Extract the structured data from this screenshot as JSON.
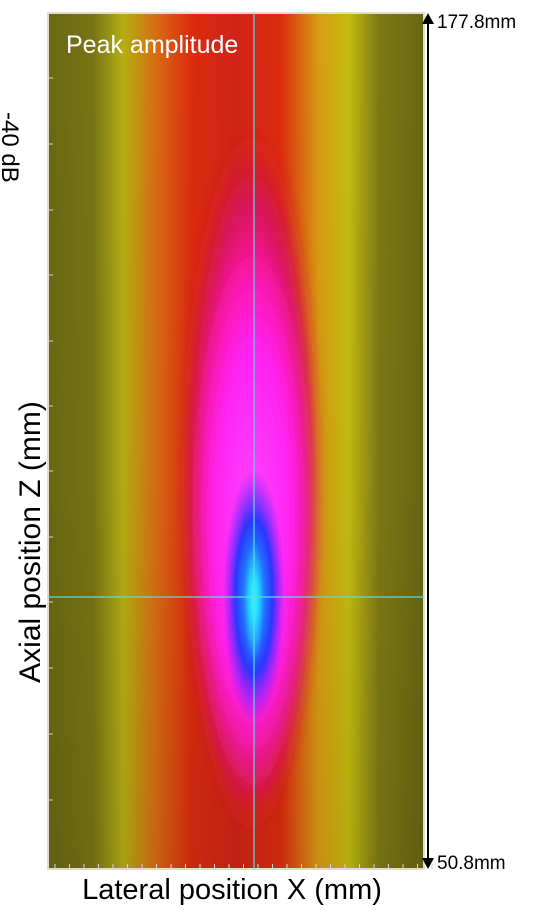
{
  "chart_data": {
    "type": "heatmap",
    "title": "Peak amplitude",
    "xlabel": "Lateral position X (mm)",
    "ylabel": "Axial position Z (mm)",
    "top_left_label": "-40 dB",
    "scale_markers": {
      "top_label": "177.8mm",
      "bottom_label": "50.8mm"
    },
    "axial_range_mm": [
      50.8,
      177.8
    ],
    "crosshair": {
      "z_mm": 85.0
    },
    "colormap": {
      "low": "#6f6a10",
      "mid_low": "#b7b313",
      "mid": "#cf5a11",
      "mid_high": "#d72f73",
      "high": "#ff2cff",
      "peak": "#2b34ff",
      "peak_core": "#2fdcff"
    },
    "grid": false
  }
}
